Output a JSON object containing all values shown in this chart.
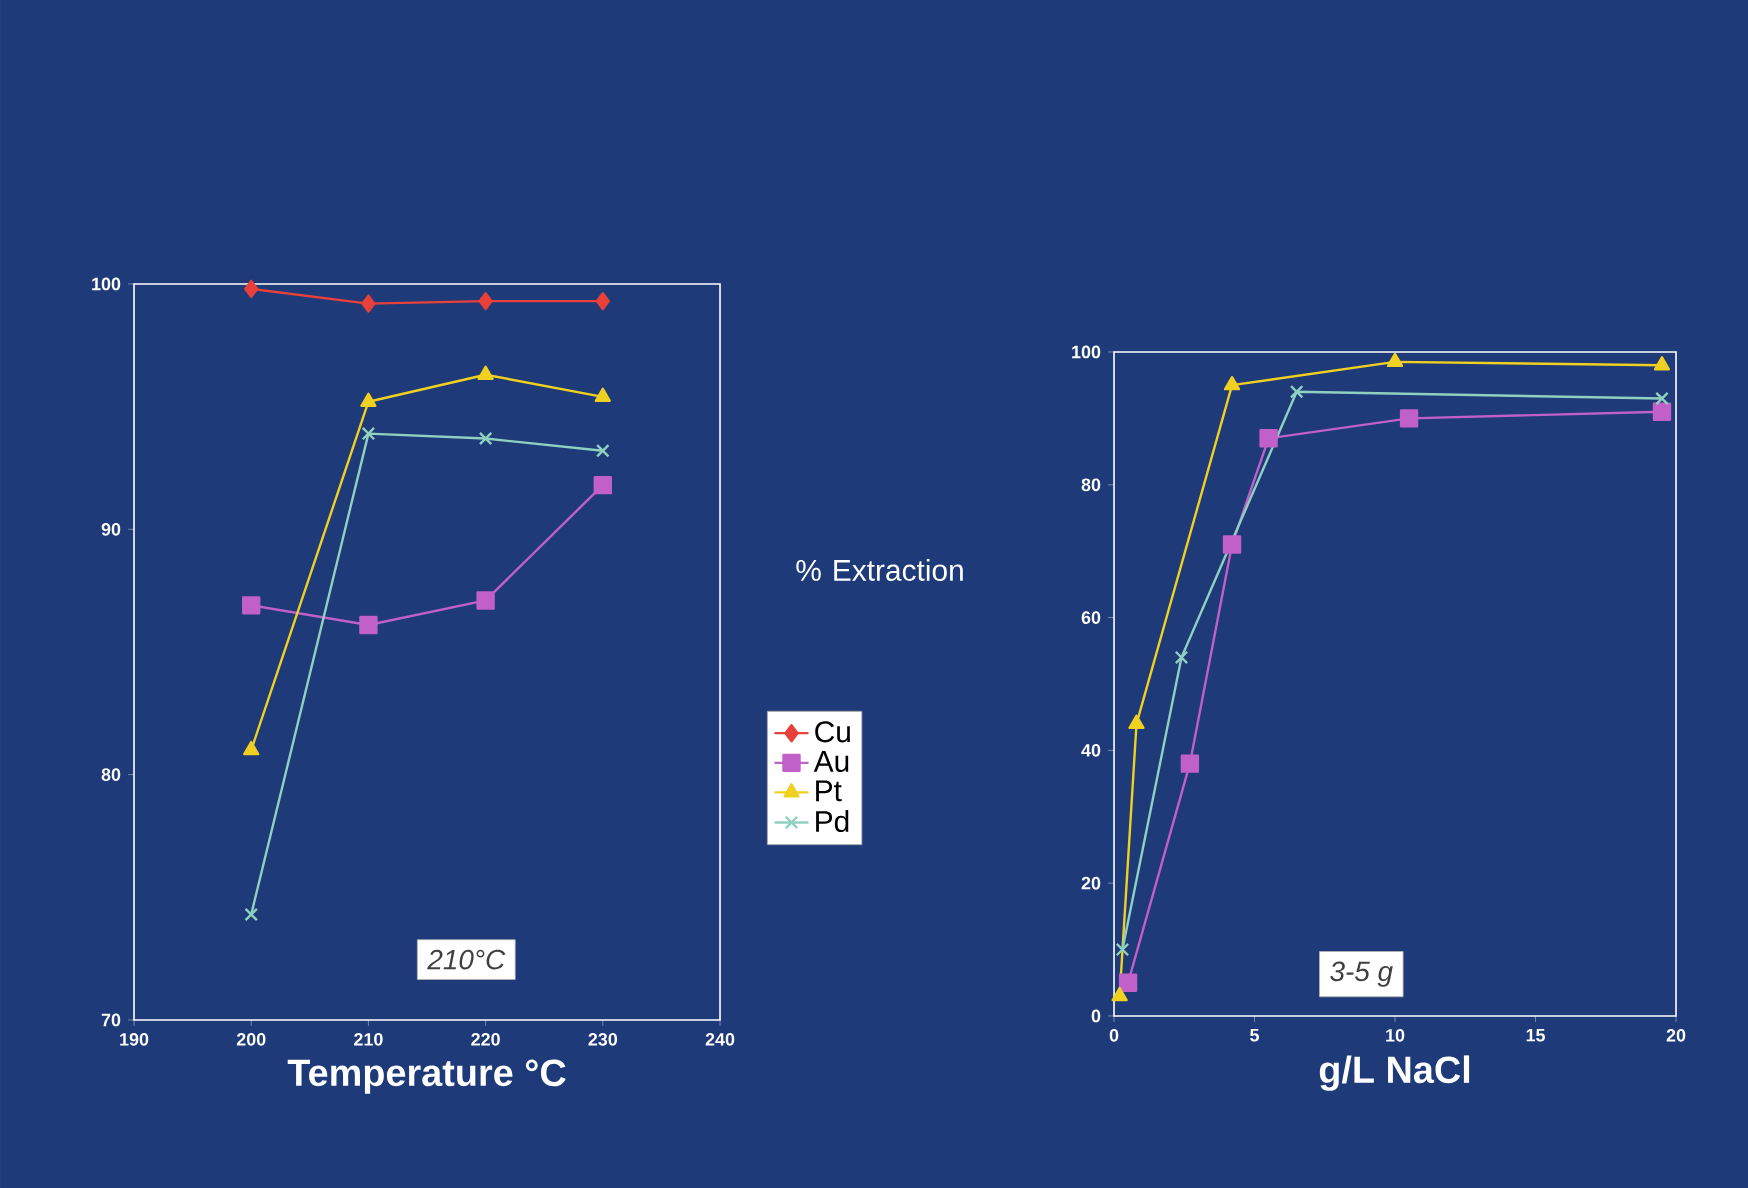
{
  "chart_data": [
    {
      "type": "line",
      "xlabel": "Temperature °C",
      "ylabel": "% Extraction",
      "xlim": [
        190,
        240
      ],
      "ylim": [
        70,
        100
      ],
      "xticks": [
        190,
        200,
        210,
        220,
        230,
        240
      ],
      "yticks": [
        70,
        80,
        90,
        100
      ],
      "grid": false,
      "legend": "right",
      "annotations": [
        "210°C"
      ],
      "x": [
        200,
        210,
        220,
        230
      ],
      "series": [
        {
          "name": "Cu",
          "color": "#e8403a",
          "marker": "diamond",
          "values": [
            99.8,
            99.2,
            99.3,
            99.3
          ]
        },
        {
          "name": "Au",
          "color": "#c060c8",
          "marker": "square",
          "values": [
            86.9,
            86.1,
            87.1,
            91.8
          ]
        },
        {
          "name": "Pt",
          "color": "#f0d020",
          "marker": "triangle",
          "values": [
            81.0,
            95.2,
            96.3,
            95.4
          ]
        },
        {
          "name": "Pd",
          "color": "#90d0c0",
          "marker": "cross",
          "values": [
            74.3,
            93.9,
            93.7,
            93.2
          ]
        }
      ]
    },
    {
      "type": "line",
      "xlabel": "g/L NaCl",
      "xlim": [
        0,
        20
      ],
      "ylim": [
        0,
        100
      ],
      "xticks": [
        0,
        5,
        10,
        15,
        20
      ],
      "yticks": [
        0,
        20,
        40,
        60,
        80,
        100
      ],
      "grid": false,
      "legend": false,
      "annotations": [
        "3-5 g"
      ],
      "series": [
        {
          "color": "#c060c8",
          "marker": "square",
          "x": [
            0.5,
            2.7,
            4.2,
            5.5,
            10.5,
            19.5
          ],
          "values": [
            5,
            38,
            71,
            87,
            90,
            91
          ]
        },
        {
          "color": "#f0d020",
          "marker": "triangle",
          "x": [
            0.2,
            0.8,
            4.2,
            10,
            19.5
          ],
          "values": [
            3,
            44,
            95,
            98.5,
            98
          ]
        },
        {
          "color": "#90d0c0",
          "marker": "cross",
          "x": [
            0.3,
            2.4,
            6.5,
            19.5
          ],
          "values": [
            10,
            54,
            94,
            93
          ]
        }
      ]
    }
  ]
}
